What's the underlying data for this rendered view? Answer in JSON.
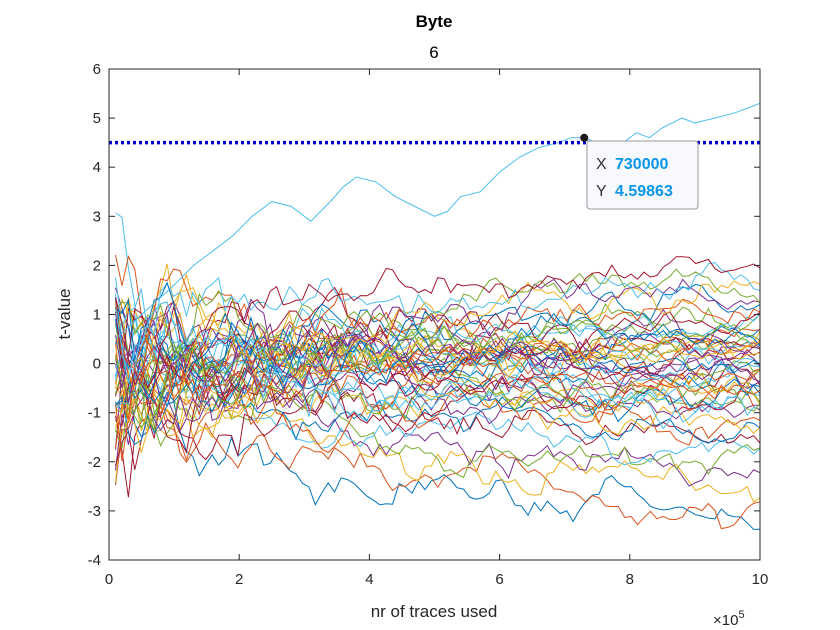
{
  "chart_data": {
    "type": "line",
    "title": "Byte",
    "subtitle": "6",
    "xlabel": "nr of traces used",
    "ylabel": "t-value",
    "x_exponent_label": "×10",
    "x_exponent_power": "5",
    "xlim": [
      0,
      10
    ],
    "ylim": [
      -4,
      6
    ],
    "xticks": [
      "0",
      "2",
      "4",
      "6",
      "8",
      "10"
    ],
    "yticks": [
      "-4",
      "-3",
      "-2",
      "-1",
      "0",
      "1",
      "2",
      "3",
      "4",
      "5",
      "6"
    ],
    "threshold": {
      "y": 4.5,
      "color": "#0000cc",
      "style": "dotted"
    },
    "datatip": {
      "x": 7.3,
      "y": 4.59863,
      "x_label": "X",
      "x_text": "730000",
      "y_label": "Y",
      "y_text": "4.59863"
    },
    "grid": false,
    "colors": [
      "#0072bd",
      "#d95319",
      "#edb120",
      "#7e2f8e",
      "#77ac30",
      "#4dbeee",
      "#a2142f"
    ],
    "highlight_series": {
      "color": "#4dbeee",
      "x": [
        0.1,
        0.5,
        1.0,
        1.3,
        1.6,
        1.9,
        2.2,
        2.5,
        2.8,
        3.1,
        3.4,
        3.6,
        3.8,
        4.1,
        4.4,
        4.7,
        5.0,
        5.2,
        5.4,
        5.7,
        6.0,
        6.3,
        6.6,
        6.9,
        7.1,
        7.3,
        7.5,
        7.7,
        7.9,
        8.1,
        8.3,
        8.5,
        8.8,
        9.0,
        9.3,
        9.6,
        9.8,
        10.0
      ],
      "y": [
        0.5,
        1.0,
        1.6,
        2.0,
        2.3,
        2.6,
        3.0,
        3.3,
        3.2,
        2.9,
        3.3,
        3.6,
        3.8,
        3.7,
        3.4,
        3.2,
        3.0,
        3.1,
        3.4,
        3.5,
        3.9,
        4.2,
        4.4,
        4.5,
        4.6,
        4.6,
        4.5,
        4.4,
        4.5,
        4.7,
        4.6,
        4.8,
        5.0,
        4.9,
        5.0,
        5.1,
        5.2,
        5.3
      ]
    },
    "ensemble": {
      "x_start": 0.1,
      "x_end": 10.0,
      "endpoints": [
        -3.4,
        -3.3,
        -2.6,
        -2.4,
        -2.1,
        -2.0,
        -1.6,
        -1.5,
        -1.4,
        -1.2,
        -1.1,
        -1.0,
        -0.9,
        -0.8,
        -0.7,
        -0.7,
        -0.6,
        -0.5,
        -0.5,
        -0.4,
        -0.3,
        -0.3,
        -0.2,
        -0.1,
        -0.1,
        0.0,
        0.0,
        0.1,
        0.1,
        0.2,
        0.2,
        0.3,
        0.3,
        0.4,
        0.4,
        0.5,
        0.5,
        0.6,
        0.7,
        0.8,
        0.9,
        1.0,
        1.1,
        1.2,
        1.4,
        1.5,
        1.6,
        1.8,
        1.9,
        0.6,
        -0.6,
        0.2,
        -0.2,
        0.8,
        -0.9
      ]
    }
  }
}
